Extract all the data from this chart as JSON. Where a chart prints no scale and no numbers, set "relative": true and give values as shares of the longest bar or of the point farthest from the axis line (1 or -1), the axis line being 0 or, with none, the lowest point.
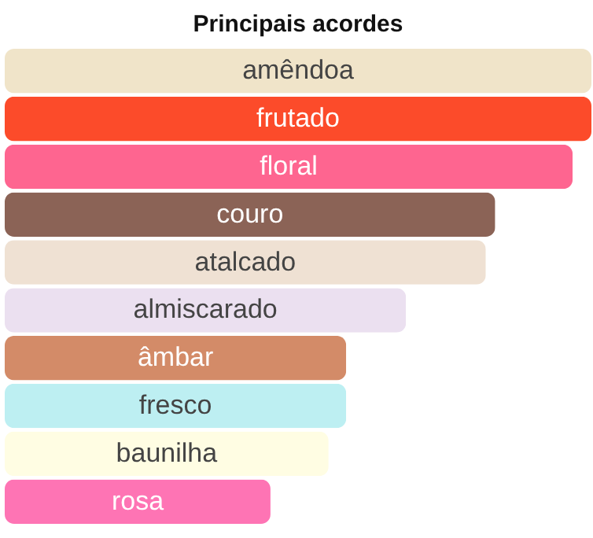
{
  "chart_data": {
    "type": "bar",
    "orientation": "horizontal",
    "relative": true,
    "title": "Principais acordes",
    "categories": [
      "amêndoa",
      "frutado",
      "floral",
      "couro",
      "atalcado",
      "almiscarado",
      "âmbar",
      "fresco",
      "baunilha",
      "rosa"
    ],
    "values": [
      1,
      1,
      0.968,
      0.836,
      0.82,
      0.684,
      0.582,
      0.582,
      0.552,
      0.453
    ],
    "colors": [
      "#f0e4c9",
      "#fc4b2a",
      "#fe6590",
      "#8b6356",
      "#efe1d3",
      "#ebe0f0",
      "#d38b68",
      "#bdeff2",
      "#fffde3",
      "#fe74b4"
    ]
  }
}
